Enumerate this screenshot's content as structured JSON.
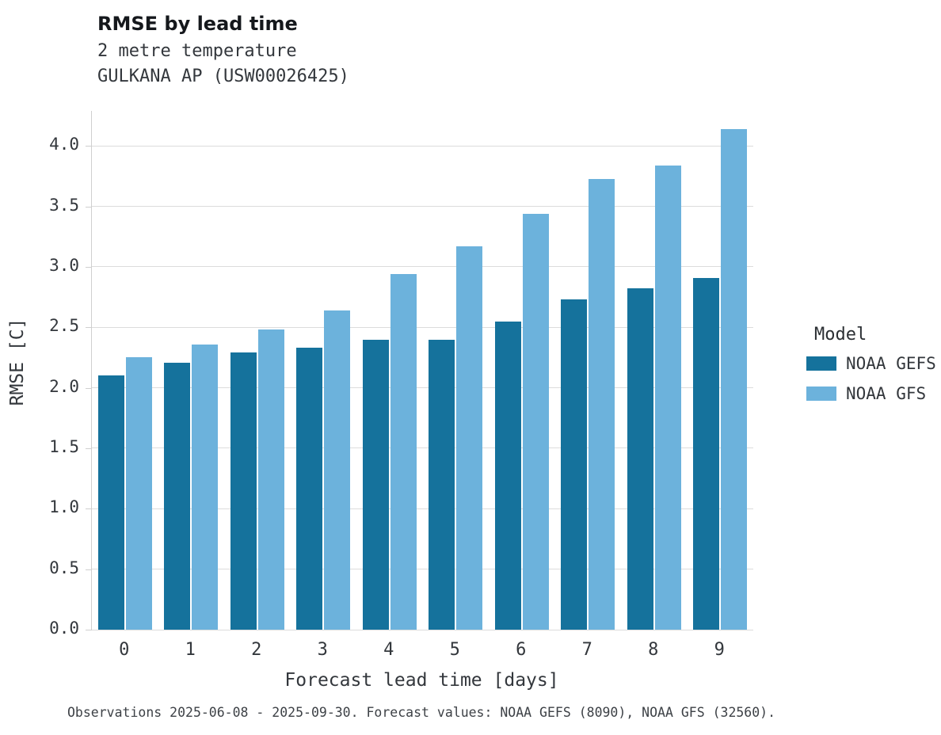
{
  "header": {
    "title": "RMSE by lead time",
    "subtitle_line1": "2 metre temperature",
    "subtitle_line2": "GULKANA AP (USW00026425)"
  },
  "legend": {
    "title": "Model"
  },
  "caption": "Observations 2025-06-08 - 2025-09-30. Forecast values: NOAA GEFS (8090), NOAA GFS (32560).",
  "chart_data": {
    "type": "bar",
    "title": "RMSE by lead time",
    "subtitle": [
      "2 metre temperature",
      "GULKANA AP (USW00026425)"
    ],
    "xlabel": "Forecast lead time [days]",
    "ylabel": "RMSE [C]",
    "categories": [
      "0",
      "1",
      "2",
      "3",
      "4",
      "5",
      "6",
      "7",
      "8",
      "9"
    ],
    "series": [
      {
        "name": "NOAA GEFS",
        "color": "#15729c",
        "values": [
          2.1,
          2.21,
          2.29,
          2.33,
          2.4,
          2.4,
          2.55,
          2.73,
          2.82,
          2.91
        ]
      },
      {
        "name": "NOAA GFS",
        "color": "#6cb2dc",
        "values": [
          2.25,
          2.36,
          2.48,
          2.64,
          2.94,
          3.17,
          3.44,
          3.73,
          3.84,
          4.14
        ]
      }
    ],
    "ylim": [
      0,
      4.29
    ],
    "yticks": [
      0.0,
      0.5,
      1.0,
      1.5,
      2.0,
      2.5,
      3.0,
      3.5,
      4.0
    ],
    "grid": "horizontal",
    "legend_position": "right",
    "legend_title": "Model"
  }
}
